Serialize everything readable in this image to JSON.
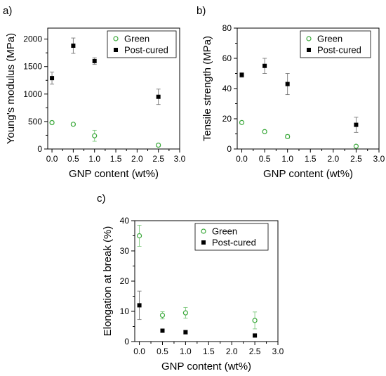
{
  "chart_data": [
    {
      "type": "scatter",
      "panel_label": "a)",
      "xlabel": "GNP content (wt%)",
      "ylabel": "Young's modulus (MPa)",
      "xlim": [
        -0.1,
        3.0
      ],
      "ylim": [
        0,
        2200
      ],
      "xticks": [
        "0.0",
        "0.5",
        "1.0",
        "1.5",
        "2.0",
        "2.5",
        "3.0"
      ],
      "yticks": [
        "0",
        "500",
        "1000",
        "1500",
        "2000"
      ],
      "xtick_values": [
        0,
        0.5,
        1.0,
        1.5,
        2.0,
        2.5,
        3.0
      ],
      "ytick_values": [
        0,
        500,
        1000,
        1500,
        2000
      ],
      "legend_position": "top-right",
      "grid": false,
      "series": [
        {
          "name": "Green",
          "marker": "open-circle",
          "color": "#3aa83a",
          "x": [
            0,
            0.5,
            1.0,
            2.5
          ],
          "y": [
            480,
            450,
            240,
            70
          ],
          "err": [
            30,
            20,
            100,
            25
          ]
        },
        {
          "name": "Post-cured",
          "marker": "filled-square",
          "color": "#000000",
          "x": [
            0,
            0.5,
            1.0,
            2.5
          ],
          "y": [
            1290,
            1880,
            1600,
            950
          ],
          "err": [
            110,
            140,
            60,
            140
          ]
        }
      ]
    },
    {
      "type": "scatter",
      "panel_label": "b)",
      "xlabel": "GNP content (wt%)",
      "ylabel": "Tensile strength (MPa)",
      "xlim": [
        -0.1,
        3.0
      ],
      "ylim": [
        0,
        80
      ],
      "xticks": [
        "0.0",
        "0.5",
        "1.0",
        "1.5",
        "2.0",
        "2.5",
        "3.0"
      ],
      "yticks": [
        "0",
        "20",
        "40",
        "60",
        "80"
      ],
      "xtick_values": [
        0,
        0.5,
        1.0,
        1.5,
        2.0,
        2.5,
        3.0
      ],
      "ytick_values": [
        0,
        20,
        40,
        60,
        80
      ],
      "legend_position": "top-right",
      "grid": false,
      "series": [
        {
          "name": "Green",
          "marker": "open-circle",
          "color": "#3aa83a",
          "x": [
            0,
            0.5,
            1.0,
            2.5
          ],
          "y": [
            17.5,
            11.5,
            8.2,
            1.8
          ],
          "err": [
            1,
            0.8,
            1.2,
            0.5
          ]
        },
        {
          "name": "Post-cured",
          "marker": "filled-square",
          "color": "#000000",
          "x": [
            0,
            0.5,
            1.0,
            2.5
          ],
          "y": [
            49,
            55,
            43,
            16
          ],
          "err": [
            1.5,
            5,
            7,
            5
          ]
        }
      ]
    },
    {
      "type": "scatter",
      "panel_label": "c)",
      "xlabel": "GNP content (wt%)",
      "ylabel": "Elongation at break (%)",
      "xlim": [
        -0.1,
        3.0
      ],
      "ylim": [
        0,
        40
      ],
      "xticks": [
        "0.0",
        "0.5",
        "1.0",
        "1.5",
        "2.0",
        "2.5",
        "3.0"
      ],
      "yticks": [
        "0",
        "10",
        "20",
        "30",
        "40"
      ],
      "xtick_values": [
        0,
        0.5,
        1.0,
        1.5,
        2.0,
        2.5,
        3.0
      ],
      "ytick_values": [
        0,
        10,
        20,
        30,
        40
      ],
      "legend_position": "top-right",
      "grid": false,
      "series": [
        {
          "name": "Green",
          "marker": "open-circle",
          "color": "#3aa83a",
          "x": [
            0,
            0.5,
            1.0,
            2.5
          ],
          "y": [
            35,
            8.7,
            9.5,
            7
          ],
          "err": [
            3.5,
            1.2,
            1.8,
            2.8
          ]
        },
        {
          "name": "Post-cured",
          "marker": "filled-square",
          "color": "#000000",
          "x": [
            0,
            0.5,
            1.0,
            2.5
          ],
          "y": [
            12,
            3.6,
            3.1,
            2
          ],
          "err": [
            4.7,
            0.4,
            0.6,
            0.3
          ]
        }
      ]
    }
  ]
}
